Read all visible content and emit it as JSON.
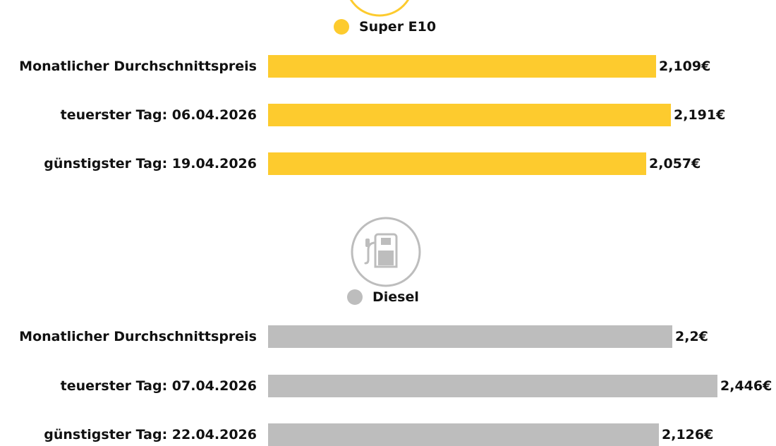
{
  "chart_data": [
    {
      "type": "bar",
      "orientation": "horizontal",
      "series_name": "Super E10",
      "color": "#FDCB2E",
      "icon": "fuel-pump-icon",
      "categories": [
        "Monatlicher Durchschnittspreis",
        "teuerster Tag: 06.04.2026",
        "günstigster Tag: 19.04.2026"
      ],
      "values": [
        2.109,
        2.191,
        2.057
      ],
      "value_labels": [
        "2,109€",
        "2,191€",
        "2,057€"
      ],
      "xlim": [
        0,
        2.5
      ]
    },
    {
      "type": "bar",
      "orientation": "horizontal",
      "series_name": "Diesel",
      "color": "#BDBDBD",
      "icon": "fuel-pump-icon",
      "categories": [
        "Monatlicher Durchschnittspreis",
        "teuerster Tag: 07.04.2026",
        "günstigster Tag: 22.04.2026"
      ],
      "values": [
        2.2,
        2.446,
        2.126
      ],
      "value_labels": [
        "2,2€",
        "2,446€",
        "2,126€"
      ],
      "xlim": [
        0,
        2.5
      ]
    }
  ]
}
